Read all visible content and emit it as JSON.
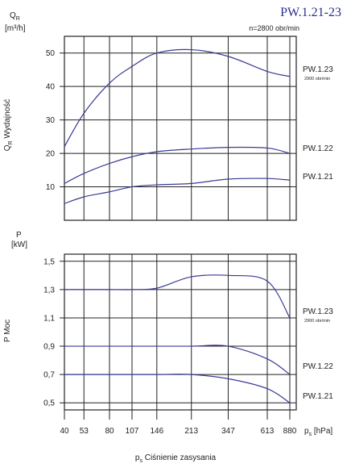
{
  "chart_data": [
    {
      "type": "line",
      "title": "PW.1.21-23",
      "subtitle": "n=2800 obr/min",
      "ylabel": "Q",
      "ylabel_sub": "R",
      "ylabel_desc": "Wydajność",
      "yunit": "[m³/h]",
      "x": [
        40,
        53,
        80,
        107,
        146,
        213,
        347,
        613,
        880
      ],
      "xticks": [
        "40",
        "53",
        "80",
        "107",
        "146",
        "213",
        "347",
        "613",
        "880"
      ],
      "yticks": [
        "10",
        "20",
        "30",
        "40",
        "50"
      ],
      "ylim": [
        0,
        55
      ],
      "grid": true,
      "series": [
        {
          "name": "PW.1.23",
          "note": "2900 obr/min",
          "values": [
            22,
            32,
            41,
            46,
            50,
            51,
            49,
            44.5,
            43
          ]
        },
        {
          "name": "PW.1.22",
          "values": [
            11,
            14,
            17,
            19,
            20.5,
            21.3,
            21.8,
            21.6,
            20
          ]
        },
        {
          "name": "PW.1.21",
          "values": [
            5,
            7,
            8.5,
            10,
            10.6,
            11,
            12.3,
            12.5,
            12
          ]
        }
      ]
    },
    {
      "type": "line",
      "ylabel": "P",
      "ylabel_desc": "Moc",
      "yunit": "[kW]",
      "xlabel": "p",
      "xlabel_sub": "s",
      "xlabel_desc": "Ciśnienie zasysania",
      "xunit": "[hPa]",
      "x": [
        40,
        53,
        80,
        107,
        146,
        213,
        347,
        613,
        880
      ],
      "xticks": [
        "40",
        "53",
        "80",
        "107",
        "146",
        "213",
        "347",
        "613",
        "880"
      ],
      "yticks": [
        "0,5",
        "0,7",
        "0,9",
        "1,1",
        "1,3",
        "1,5"
      ],
      "ylim": [
        0.45,
        1.55
      ],
      "grid": true,
      "series": [
        {
          "name": "PW.1.23",
          "note": "2900 obr/min",
          "values": [
            1.3,
            1.3,
            1.3,
            1.3,
            1.31,
            1.39,
            1.4,
            1.36,
            1.1
          ]
        },
        {
          "name": "PW.1.22",
          "values": [
            0.9,
            0.9,
            0.9,
            0.9,
            0.9,
            0.9,
            0.9,
            0.81,
            0.7
          ]
        },
        {
          "name": "PW.1.21",
          "values": [
            0.7,
            0.7,
            0.7,
            0.7,
            0.7,
            0.7,
            0.67,
            0.6,
            0.5
          ]
        }
      ]
    }
  ],
  "colors": {
    "curve": "#3a3a96",
    "title": "#2b2f8f",
    "axis": "#222222"
  }
}
